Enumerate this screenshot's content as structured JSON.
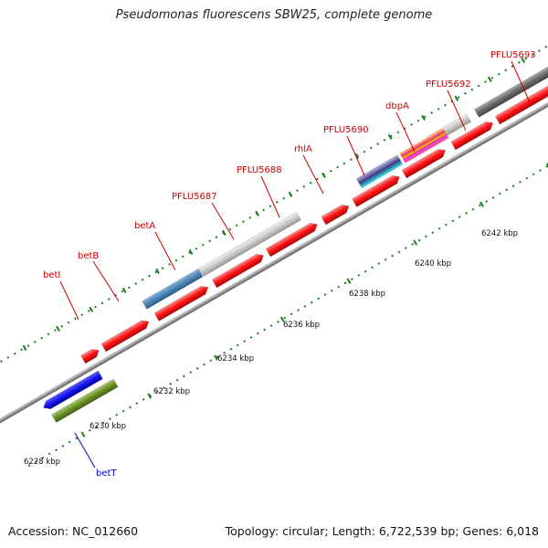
{
  "title": "Pseudomonas fluorescens SBW25, complete genome",
  "footer": {
    "accession": "Accession: NC_012660",
    "summary": "Topology: circular; Length: 6,722,539 bp; Genes: 6,018"
  },
  "axis": {
    "unit": "kbp",
    "tick_labels": [
      "6228 kbp",
      "6230 kbp",
      "6232 kbp",
      "6234 kbp",
      "6236 kbp",
      "6238 kbp",
      "6240 kbp",
      "6242 kbp"
    ]
  },
  "gene_labels": {
    "plus": [
      "betI",
      "betB",
      "betA",
      "PFLU5687",
      "PFLU5688",
      "rhlA",
      "PFLU5690",
      "dbpA",
      "PFLU5692",
      "PFLU5693"
    ],
    "minus": [
      "betT"
    ]
  },
  "colors": {
    "label_plus": "#cc0000",
    "label_minus": "#0000cc",
    "cds": "#ff1a1a",
    "backbone": "#8c8c8c",
    "tick_green": "#1f7a1f"
  }
}
